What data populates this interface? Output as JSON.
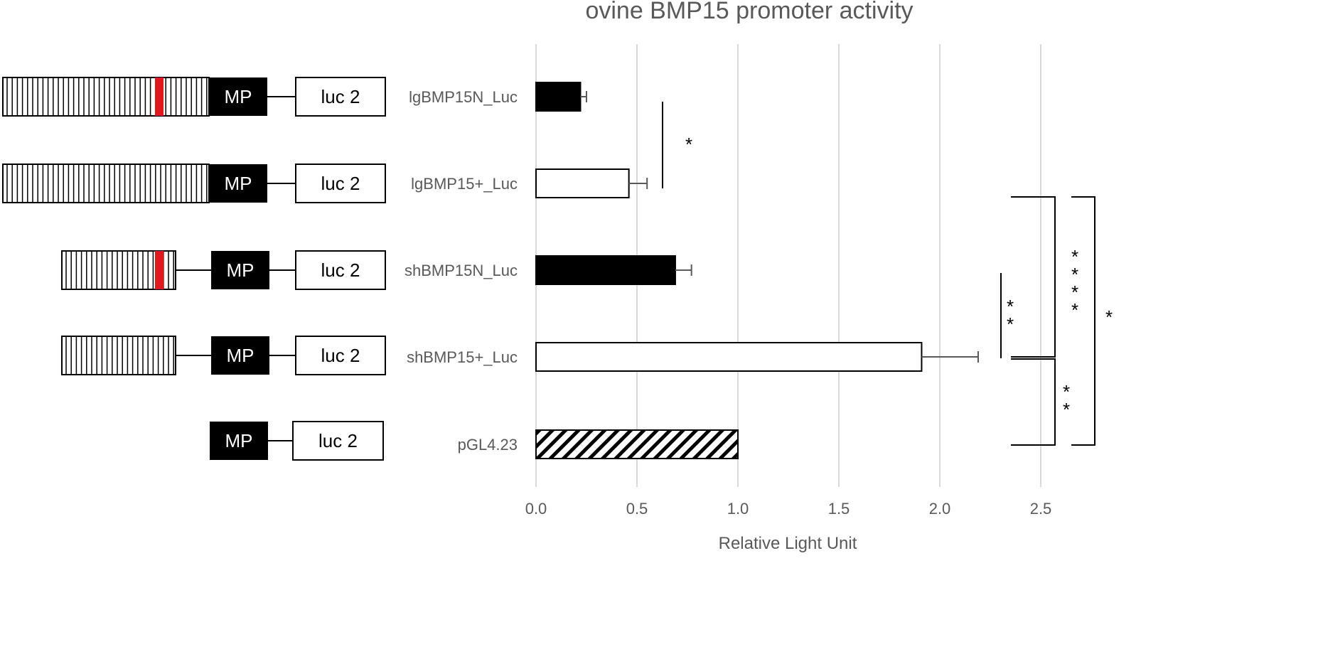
{
  "chart_data": {
    "type": "bar",
    "orientation": "horizontal",
    "title": "ovine BMP15 promoter activity",
    "xlabel": "Relative Light Unit",
    "ylabel": "",
    "xlim": [
      0,
      2.8
    ],
    "x_ticks": [
      0.0,
      0.5,
      1.0,
      1.5,
      2.0,
      2.5
    ],
    "x_tick_labels": [
      "0.0",
      "0.5",
      "1.0",
      "1.5",
      "2.0",
      "2.5"
    ],
    "grid": "vertical",
    "categories": [
      "lgBMP15N_Luc",
      "lgBMP15+_Luc",
      "shBMP15N_Luc",
      "shBMP15+_Luc",
      "pGL4.23"
    ],
    "values": [
      0.22,
      0.46,
      0.69,
      1.91,
      1.0
    ],
    "error": [
      0.03,
      0.09,
      0.08,
      0.28,
      0.0
    ],
    "bar_fill": [
      "solid",
      "open",
      "solid",
      "open",
      "hatched"
    ],
    "significance": [
      {
        "label": "*",
        "between": [
          "lgBMP15N_Luc",
          "lgBMP15+_Luc"
        ]
      },
      {
        "label": "**",
        "between": [
          "shBMP15N_Luc",
          "shBMP15+_Luc"
        ]
      },
      {
        "label": "****",
        "between": [
          "shBMP15N_Luc",
          "shBMP15+_Luc"
        ]
      },
      {
        "label": "**",
        "between": [
          "shBMP15+_Luc",
          "pGL4.23"
        ]
      },
      {
        "label": "*",
        "between": [
          "shBMP15N_Luc",
          "pGL4.23"
        ]
      }
    ]
  },
  "constructs": [
    {
      "promoter": "long",
      "marked": true,
      "mp_label": "MP",
      "reporter_label": "luc 2"
    },
    {
      "promoter": "long",
      "marked": false,
      "mp_label": "MP",
      "reporter_label": "luc 2"
    },
    {
      "promoter": "short",
      "marked": true,
      "mp_label": "MP",
      "reporter_label": "luc 2"
    },
    {
      "promoter": "short",
      "marked": false,
      "mp_label": "MP",
      "reporter_label": "luc 2"
    },
    {
      "promoter": "none",
      "marked": false,
      "mp_label": "MP",
      "reporter_label": "luc 2"
    }
  ],
  "colors": {
    "bar": "#000000",
    "grid": "#d9d9d9",
    "marker": "#e0191f",
    "text": "#595959",
    "error_bar": "#595959"
  }
}
